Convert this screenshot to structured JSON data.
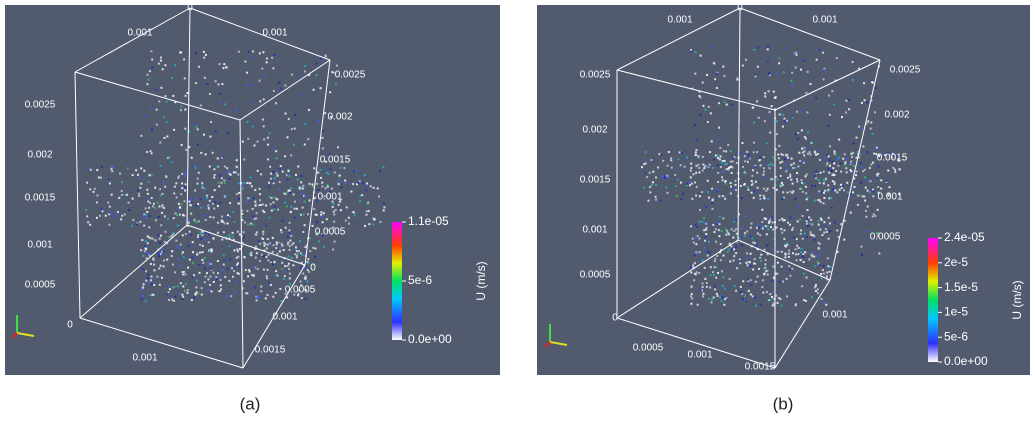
{
  "panels": [
    {
      "caption": "(a)",
      "colorbar": {
        "title": "U (m/s)",
        "labels": [
          "1.1e-05",
          "5e-6",
          "0.0e+00"
        ]
      },
      "axis_labels": [
        "0.001",
        "0",
        "0.001",
        "0.0025",
        "0.002",
        "0.0015",
        "0.001",
        "0.0005",
        "0",
        "0.0025",
        "0.002",
        "0.0015",
        "0.001",
        "0.0005",
        "0",
        "0.001",
        "0.0005",
        "0.001",
        "0.0015"
      ]
    },
    {
      "caption": "(b)",
      "colorbar": {
        "title": "U (m/s)",
        "labels": [
          "2.4e-05",
          "2e-5",
          "1.5e-5",
          "1e-5",
          "5e-6",
          "0.0e+00"
        ]
      },
      "axis_labels": [
        "0.001",
        "0",
        "0.001",
        "0.0025",
        "0.002",
        "0.0015",
        "0.001",
        "0.0005",
        "0",
        "0.0025",
        "0.002",
        "0.0015",
        "0.001",
        "0.0005",
        "0.0005",
        "0.001",
        "0.0015",
        "0.001"
      ]
    }
  ]
}
